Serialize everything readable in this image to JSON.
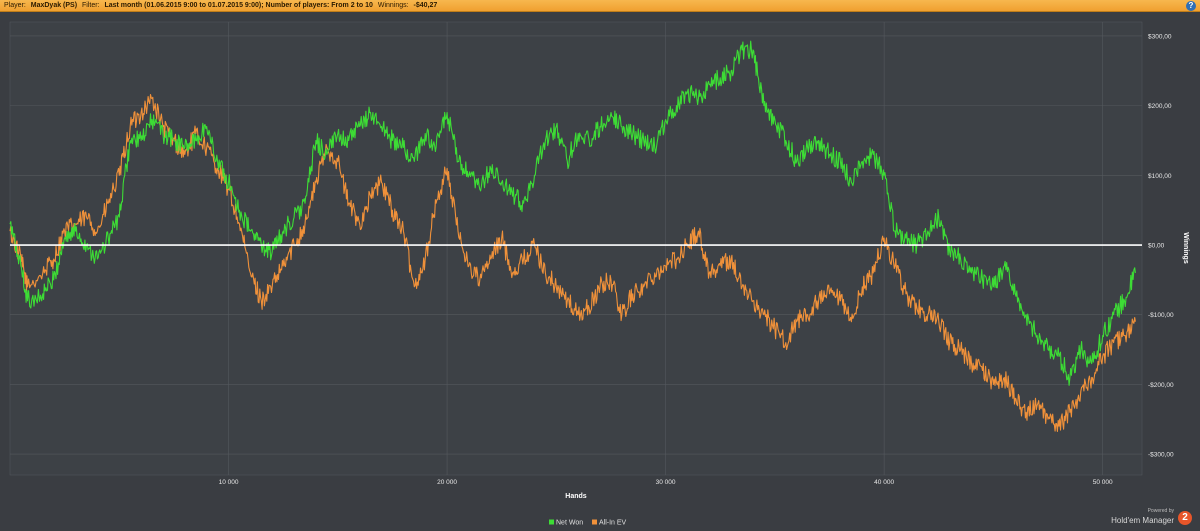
{
  "header": {
    "player_label": "Player:",
    "player_value": "MaxDyak (PS)",
    "filter_label": "Filter:",
    "filter_value": "Last month (01.06.2015 9:00 to 01.07.2015 9:00); Number of players: From 2 to 10",
    "winnings_label": "Winnings:",
    "winnings_value": "-$40,27",
    "help_icon": "question-icon"
  },
  "branding": {
    "powered_by": "Powered by",
    "product": "Hold'em Manager",
    "badge": "2"
  },
  "chart_data": {
    "type": "line",
    "xlabel": "Hands",
    "ylabel": "Winnings",
    "xlim": [
      0,
      51800
    ],
    "ylim": [
      -330,
      320
    ],
    "x_ticks": [
      10000,
      20000,
      30000,
      40000,
      50000
    ],
    "x_tick_labels": [
      "10 000",
      "20 000",
      "30 000",
      "40 000",
      "50 000"
    ],
    "y_ticks": [
      300,
      200,
      100,
      0,
      -100,
      -200,
      -300
    ],
    "y_tick_labels": [
      "$300,00",
      "$200,00",
      "$100,00",
      "$0,00",
      "-$100,00",
      "-$200,00",
      "-$300,00"
    ],
    "grid": true,
    "legend_position": "bottom-center",
    "zero_line_color": "#ffffff",
    "series": [
      {
        "name": "Net Won",
        "color": "#3ddc35",
        "x": [
          0,
          500,
          800,
          1500,
          2000,
          2500,
          3000,
          3500,
          4000,
          4500,
          5000,
          5500,
          6000,
          6500,
          7000,
          7500,
          8000,
          8500,
          9000,
          9500,
          10000,
          10500,
          11000,
          11500,
          12000,
          12500,
          13000,
          13500,
          14000,
          14500,
          15000,
          15500,
          16000,
          16500,
          17000,
          17500,
          18000,
          18500,
          19000,
          19500,
          20000,
          20500,
          21000,
          21500,
          22000,
          22500,
          23000,
          23500,
          24000,
          24500,
          25000,
          25500,
          26000,
          26500,
          27000,
          27500,
          28000,
          28500,
          29000,
          29500,
          30000,
          30500,
          31000,
          31500,
          32000,
          32500,
          33000,
          33500,
          34000,
          34500,
          35000,
          35500,
          36000,
          36500,
          37000,
          37500,
          38000,
          38500,
          39000,
          39500,
          40000,
          40500,
          41000,
          41500,
          42000,
          42500,
          43000,
          43500,
          44000,
          44500,
          45000,
          45500,
          46000,
          46500,
          47000,
          47500,
          48000,
          48500,
          49000,
          49500,
          50000,
          50500,
          51000,
          51500
        ],
        "values": [
          30,
          -30,
          -80,
          -70,
          -50,
          10,
          20,
          0,
          -20,
          10,
          40,
          150,
          150,
          180,
          160,
          150,
          140,
          150,
          170,
          120,
          90,
          50,
          20,
          0,
          -10,
          20,
          40,
          60,
          150,
          130,
          160,
          150,
          170,
          190,
          170,
          150,
          140,
          120,
          160,
          140,
          190,
          120,
          100,
          80,
          110,
          90,
          70,
          60,
          100,
          150,
          170,
          120,
          160,
          150,
          170,
          190,
          170,
          160,
          150,
          140,
          180,
          200,
          220,
          210,
          230,
          240,
          250,
          280,
          280,
          200,
          180,
          150,
          120,
          140,
          150,
          130,
          120,
          90,
          120,
          130,
          100,
          20,
          10,
          0,
          20,
          40,
          -10,
          -20,
          -40,
          -50,
          -60,
          -30,
          -70,
          -100,
          -130,
          -150,
          -160,
          -190,
          -150,
          -170,
          -130,
          -100,
          -80,
          -40
        ]
      },
      {
        "name": "All-In EV",
        "color": "#f0913a",
        "x": [
          0,
          500,
          800,
          1500,
          2000,
          2500,
          3000,
          3500,
          4000,
          4500,
          5000,
          5500,
          6000,
          6500,
          7000,
          7500,
          8000,
          8500,
          9000,
          9500,
          10000,
          10500,
          11000,
          11500,
          12000,
          12500,
          13000,
          13500,
          14000,
          14500,
          15000,
          15500,
          16000,
          16500,
          17000,
          17500,
          18000,
          18500,
          19000,
          19500,
          20000,
          20500,
          21000,
          21500,
          22000,
          22500,
          23000,
          23500,
          24000,
          24500,
          25000,
          25500,
          26000,
          26500,
          27000,
          27500,
          28000,
          28500,
          29000,
          29500,
          30000,
          30500,
          31000,
          31500,
          32000,
          32500,
          33000,
          33500,
          34000,
          34500,
          35000,
          35500,
          36000,
          36500,
          37000,
          37500,
          38000,
          38500,
          39000,
          39500,
          40000,
          40500,
          41000,
          41500,
          42000,
          42500,
          43000,
          43500,
          44000,
          44500,
          45000,
          45500,
          46000,
          46500,
          47000,
          47500,
          48000,
          48500,
          49000,
          49500,
          50000,
          50500,
          51000,
          51500
        ],
        "values": [
          20,
          -20,
          -60,
          -40,
          -20,
          20,
          30,
          40,
          20,
          60,
          100,
          170,
          190,
          210,
          170,
          150,
          130,
          160,
          140,
          110,
          80,
          30,
          -40,
          -80,
          -60,
          -30,
          0,
          30,
          90,
          140,
          120,
          60,
          30,
          70,
          90,
          50,
          20,
          -60,
          -20,
          60,
          110,
          20,
          -30,
          -50,
          -20,
          10,
          -40,
          -20,
          0,
          -40,
          -60,
          -80,
          -100,
          -90,
          -60,
          -50,
          -100,
          -70,
          -60,
          -40,
          -30,
          -20,
          0,
          20,
          -40,
          -30,
          -20,
          -60,
          -80,
          -100,
          -120,
          -140,
          -110,
          -100,
          -80,
          -70,
          -80,
          -110,
          -60,
          -40,
          10,
          -30,
          -70,
          -90,
          -100,
          -110,
          -140,
          -150,
          -170,
          -180,
          -200,
          -190,
          -220,
          -240,
          -230,
          -250,
          -260,
          -240,
          -210,
          -190,
          -160,
          -140,
          -130,
          -110
        ]
      }
    ]
  }
}
